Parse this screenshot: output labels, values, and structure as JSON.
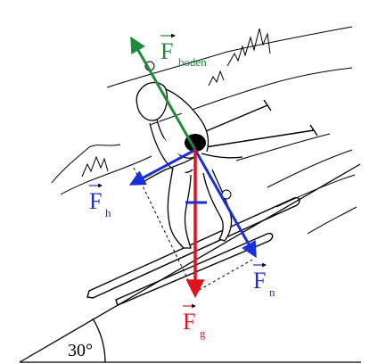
{
  "forces": {
    "boden": {
      "symbol": "F",
      "subscript": "boden",
      "color": "#1e8a3a"
    },
    "h": {
      "symbol": "F",
      "subscript": "h",
      "color": "#1a2fd6"
    },
    "n": {
      "symbol": "F",
      "subscript": "n",
      "color": "#1a2fd6"
    },
    "g": {
      "symbol": "F",
      "subscript": "g",
      "color": "#e0141e"
    }
  },
  "slope": {
    "angle_label": "30°"
  }
}
